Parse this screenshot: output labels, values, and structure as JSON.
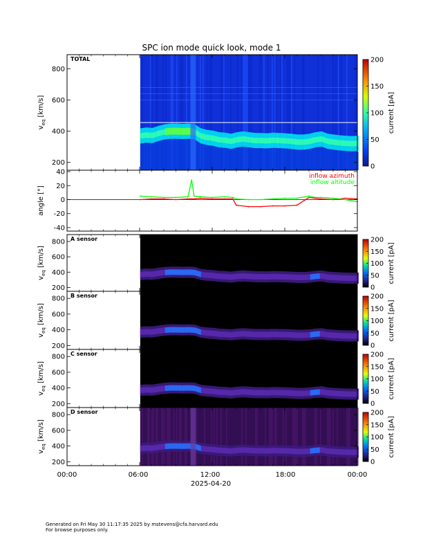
{
  "title": "SPC ion mode quick look, mode 1",
  "footer": {
    "line1": "Generated on Fri May 30 11:17:35 2025 by mstevens@cfa.harvard.edu",
    "line2": "For browse purposes only."
  },
  "x_axis": {
    "tick_labels": [
      "00:00",
      "06:00",
      "12:00",
      "18:00",
      "00:00"
    ],
    "ticks_hours": [
      0,
      6,
      12,
      18,
      24
    ],
    "date_label": "2025-04-20",
    "range_hours": [
      0,
      24
    ],
    "data_start_hours": 6.05
  },
  "colorbar": {
    "label": "current [pA]",
    "total_ticks": [
      "0",
      "50",
      "100",
      "150",
      "200"
    ],
    "sensor_ticks": [
      "0",
      "50",
      "100",
      "150",
      "200"
    ],
    "range": [
      0,
      200
    ],
    "colors": [
      "#1a1aa0",
      "#0050ff",
      "#00c8ff",
      "#40ff80",
      "#e0ff00",
      "#ffa000",
      "#ff2000",
      "#c00000"
    ]
  },
  "panels": {
    "total": {
      "label": "TOTAL",
      "ylabel_main": "v",
      "ylabel_sub": "eq",
      "ylabel_unit": " [km/s]",
      "yticks": [
        "200",
        "400",
        "600",
        "800"
      ],
      "ylim": [
        150,
        890
      ]
    },
    "angle": {
      "ylabel": "angle [°]",
      "yticks": [
        "-40",
        "-20",
        "0",
        "20",
        "40"
      ],
      "ylim": [
        -45,
        42
      ],
      "legend": [
        {
          "label": "inflow azimuth",
          "color": "#ff0000"
        },
        {
          "label": "inflow altitude",
          "color": "#00ff00"
        }
      ]
    },
    "a": {
      "label": "A sensor",
      "ylabel_main": "v",
      "ylabel_sub": "eq",
      "ylabel_unit": " [km/s]",
      "yticks": [
        "200",
        "400",
        "600",
        "800"
      ],
      "ylim": [
        150,
        890
      ]
    },
    "b": {
      "label": "B sensor",
      "ylabel_main": "v",
      "ylabel_sub": "eq",
      "ylabel_unit": " [km/s]",
      "yticks": [
        "200",
        "400",
        "600",
        "800"
      ],
      "ylim": [
        150,
        890
      ]
    },
    "c": {
      "label": "C sensor",
      "ylabel_main": "v",
      "ylabel_sub": "eq",
      "ylabel_unit": " [km/s]",
      "yticks": [
        "200",
        "400",
        "600",
        "800"
      ],
      "ylim": [
        150,
        890
      ]
    },
    "d": {
      "label": "D sensor",
      "ylabel_main": "v",
      "ylabel_sub": "eq",
      "ylabel_unit": " [km/s]",
      "yticks": [
        "200",
        "400",
        "600",
        "800"
      ],
      "ylim": [
        150,
        890
      ]
    }
  },
  "chart_data": [
    {
      "type": "heatmap",
      "title": "SPC ion mode quick look, mode 1",
      "panel": "TOTAL",
      "xlabel": "2025-04-20",
      "ylabel": "v_eq [km/s]",
      "ylim": [
        150,
        890
      ],
      "colorbar_label": "current [pA]",
      "colorbar_range": [
        0,
        200
      ],
      "speed_trace": {
        "x_hours": [
          6.05,
          6.5,
          7.0,
          7.5,
          8.0,
          8.5,
          9.0,
          9.5,
          10.0,
          10.5,
          11.0,
          11.5,
          12.0,
          12.5,
          13.0,
          13.5,
          14.0,
          14.5,
          15.0,
          15.5,
          16.0,
          16.5,
          17.0,
          17.5,
          18.0,
          18.5,
          19.0,
          19.5,
          20.0,
          20.5,
          21.0,
          21.5,
          22.0,
          22.5,
          23.0,
          23.5,
          24.0
        ],
        "v_peak_kms": [
          370,
          375,
          372,
          385,
          395,
          400,
          400,
          398,
          400,
          395,
          370,
          360,
          355,
          345,
          342,
          335,
          345,
          350,
          345,
          340,
          340,
          338,
          342,
          340,
          338,
          335,
          330,
          330,
          335,
          345,
          350,
          335,
          330,
          325,
          322,
          320,
          322
        ]
      }
    },
    {
      "type": "line",
      "panel": "angle",
      "ylabel": "angle [°]",
      "ylim": [
        -45,
        42
      ],
      "x_hours": [
        6.05,
        7.0,
        8.0,
        9.0,
        10.0,
        10.3,
        10.5,
        11.0,
        12.0,
        13.0,
        13.7,
        14.0,
        15.0,
        16.0,
        17.0,
        18.0,
        19.0,
        20.0,
        20.5,
        21.0,
        22.0,
        23.0,
        24.0
      ],
      "series": [
        {
          "name": "inflow azimuth",
          "values": [
            0,
            1,
            1,
            0,
            1,
            1,
            1,
            2,
            1,
            1,
            1,
            -8,
            -10,
            -10,
            -9,
            -9,
            -8,
            3,
            2,
            1,
            0,
            2,
            1
          ]
        },
        {
          "name": "inflow altitude",
          "values": [
            5,
            4,
            3,
            3,
            4,
            28,
            5,
            4,
            3,
            4,
            3,
            1,
            0,
            0,
            1,
            2,
            2,
            5,
            3,
            3,
            2,
            0,
            -3
          ]
        }
      ]
    },
    {
      "type": "heatmap",
      "panel": "A sensor",
      "ylabel": "v_eq [km/s]",
      "ylim": [
        150,
        890
      ],
      "colorbar_label": "current [pA]",
      "colorbar_range": [
        0,
        200
      ]
    },
    {
      "type": "heatmap",
      "panel": "B sensor",
      "ylabel": "v_eq [km/s]",
      "ylim": [
        150,
        890
      ],
      "colorbar_label": "current [pA]",
      "colorbar_range": [
        0,
        200
      ]
    },
    {
      "type": "heatmap",
      "panel": "C sensor",
      "ylabel": "v_eq [km/s]",
      "ylim": [
        150,
        890
      ],
      "colorbar_label": "current [pA]",
      "colorbar_range": [
        0,
        200
      ]
    },
    {
      "type": "heatmap",
      "panel": "D sensor",
      "ylabel": "v_eq [km/s]",
      "ylim": [
        150,
        890
      ],
      "colorbar_label": "current [pA]",
      "colorbar_range": [
        0,
        200
      ]
    }
  ]
}
